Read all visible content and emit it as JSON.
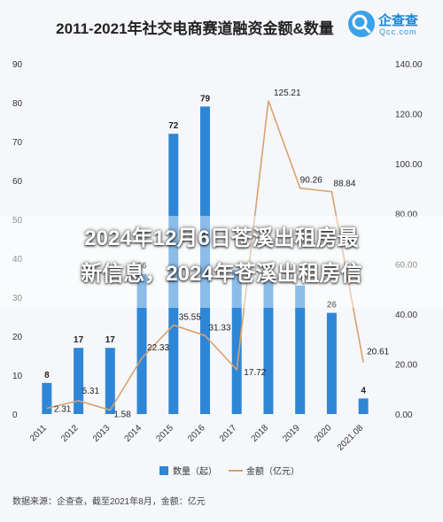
{
  "chart_data": {
    "type": "bar",
    "title": "2011-2021年社交电商赛道融资金额&数量",
    "categories": [
      "2011",
      "2012",
      "2013",
      "2014",
      "2015",
      "2016",
      "2017",
      "2018",
      "2019",
      "2020",
      "2021.08"
    ],
    "series": [
      {
        "name": "数量（起）",
        "type": "bar",
        "axis": "left",
        "values": [
          8,
          17,
          17,
          36,
          72,
          79,
          37,
          34,
          33,
          26,
          4
        ],
        "labels": [
          "8",
          "17",
          "17",
          "36",
          "72",
          "79",
          "",
          "",
          "",
          "26",
          "4"
        ]
      },
      {
        "name": "金额（亿元）",
        "type": "line",
        "axis": "right",
        "values": [
          2.31,
          5.31,
          1.58,
          22.33,
          35.55,
          31.33,
          17.72,
          125.21,
          90.26,
          88.84,
          20.61
        ],
        "labels": [
          "2.31",
          "5.31",
          "1.58",
          "22.33",
          "35.55",
          "31.33",
          "17.72",
          "125.21",
          "90.26",
          "88.84",
          "20.61"
        ]
      }
    ],
    "left_axis": {
      "min": 0,
      "max": 90,
      "ticks": [
        "0",
        "10",
        "20",
        "30",
        "40",
        "50",
        "60",
        "70",
        "80",
        "90"
      ]
    },
    "right_axis": {
      "min": 0,
      "max": 140,
      "ticks": [
        "0.00",
        "20.00",
        "40.00",
        "60.00",
        "80.00",
        "100.00",
        "120.00",
        "140.00"
      ]
    },
    "grid": false,
    "legend": "bottom-center",
    "colors": {
      "bar": "#2f86d6",
      "line": "#d9a26e"
    }
  },
  "brand": {
    "name": "企查查",
    "domain": "Qcc.com"
  },
  "source": "数据来源：企查查，截至2021年8月，金额：亿元",
  "overlay": {
    "line1": "2024年12月6日苍溪出租房最",
    "line2": "新信息，2024年苍溪出租房信"
  }
}
